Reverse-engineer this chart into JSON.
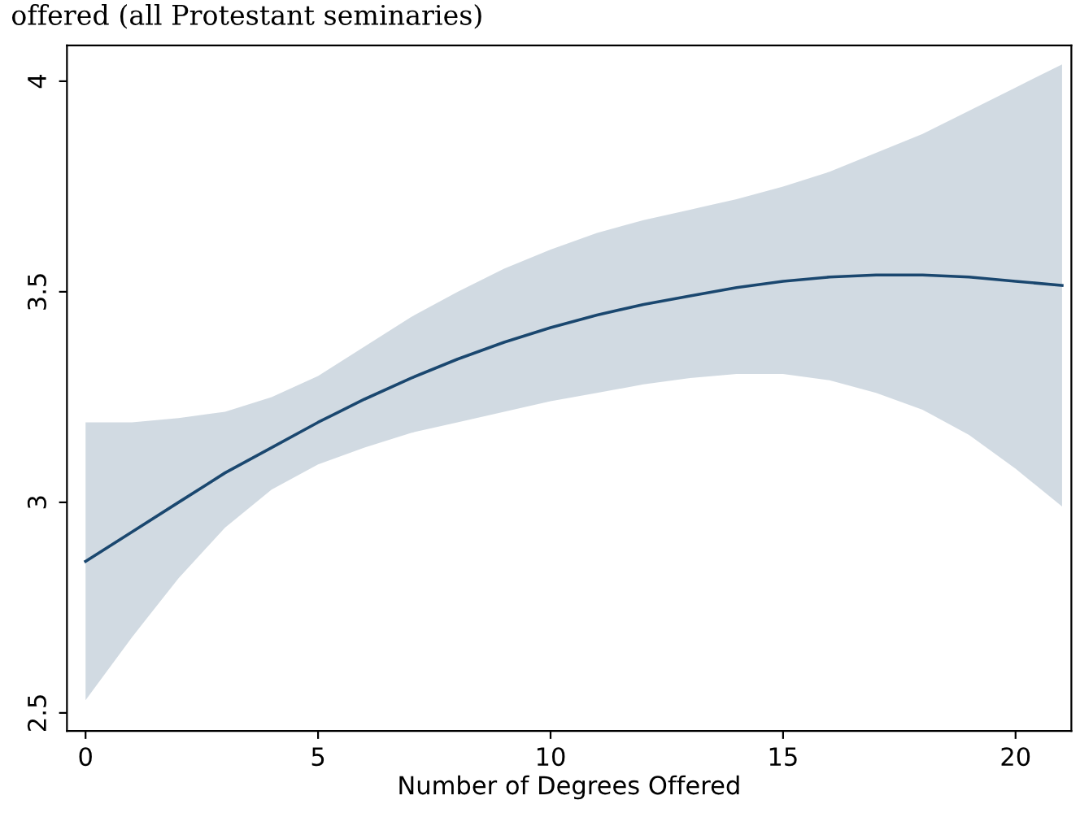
{
  "chart_data": {
    "type": "line",
    "title": "offered (all Protestant seminaries)",
    "xlabel": "Number of Degrees Offered",
    "x": [
      0,
      1,
      2,
      3,
      4,
      5,
      6,
      7,
      8,
      9,
      10,
      11,
      12,
      13,
      14,
      15,
      16,
      17,
      18,
      19,
      20,
      21
    ],
    "series": [
      {
        "color": "#1a476f",
        "values": [
          2.86,
          2.93,
          3.0,
          3.07,
          3.13,
          3.19,
          3.245,
          3.295,
          3.34,
          3.38,
          3.415,
          3.445,
          3.47,
          3.49,
          3.51,
          3.525,
          3.535,
          3.54,
          3.54,
          3.535,
          3.525,
          3.515
        ],
        "lower": [
          2.53,
          2.68,
          2.82,
          2.94,
          3.03,
          3.09,
          3.13,
          3.165,
          3.19,
          3.215,
          3.24,
          3.26,
          3.28,
          3.295,
          3.305,
          3.305,
          3.29,
          3.26,
          3.22,
          3.16,
          3.08,
          2.99
        ],
        "upper": [
          3.19,
          3.19,
          3.2,
          3.215,
          3.25,
          3.3,
          3.37,
          3.44,
          3.5,
          3.555,
          3.6,
          3.64,
          3.67,
          3.695,
          3.72,
          3.75,
          3.785,
          3.83,
          3.875,
          3.93,
          3.985,
          4.04
        ]
      }
    ],
    "xlim": [
      -0.4,
      21.2
    ],
    "ylim": [
      2.457,
      4.085
    ],
    "xticks": [
      0,
      5,
      10,
      15,
      20
    ],
    "yticks": [
      2.5,
      3,
      3.5,
      4
    ],
    "grid": false,
    "legend": false,
    "marker": "none",
    "line_style": "solid"
  }
}
